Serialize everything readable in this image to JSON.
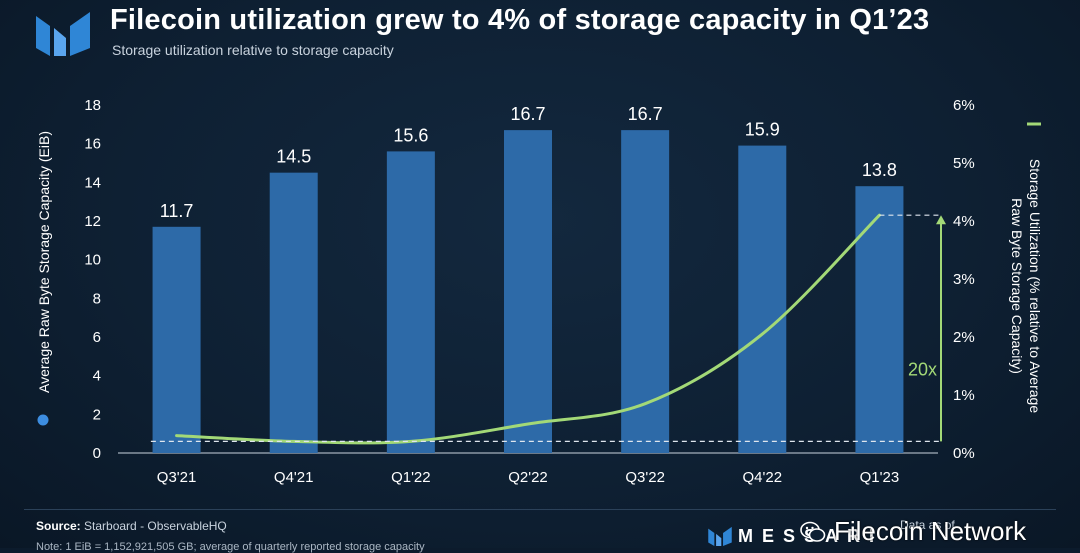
{
  "header": {
    "title": "Filecoin utilization grew to 4% of storage capacity in Q1’23",
    "subtitle": "Storage utilization relative to storage capacity"
  },
  "chart_data": {
    "type": "bar",
    "categories": [
      "Q3'21",
      "Q4'21",
      "Q1'22",
      "Q2'22",
      "Q3'22",
      "Q4'22",
      "Q1'23"
    ],
    "series": [
      {
        "name": "Average Raw Byte Storage Capacity (EiB)",
        "type": "bar",
        "axis": "left",
        "values": [
          11.7,
          14.5,
          15.6,
          16.7,
          16.7,
          15.9,
          13.8
        ],
        "data_labels": [
          "11.7",
          "14.5",
          "15.6",
          "16.7",
          "16.7",
          "15.9",
          "13.8"
        ],
        "color": "#2d6aa8"
      },
      {
        "name": "Storage Utilization (% relative to Average Raw Byte Storage Capacity)",
        "type": "line",
        "axis": "right",
        "values": [
          0.3,
          0.2,
          0.2,
          0.5,
          0.85,
          2.05,
          4.1
        ],
        "color": "#a3d977"
      }
    ],
    "left_axis": {
      "label": "Average Raw Byte Storage Capacity (EiB)",
      "ylim": [
        0,
        18
      ],
      "ticks": [
        0,
        2,
        4,
        6,
        8,
        10,
        12,
        14,
        16,
        18
      ],
      "tick_labels": [
        "0",
        "2",
        "4",
        "6",
        "8",
        "10",
        "12",
        "14",
        "16",
        "18"
      ]
    },
    "right_axis": {
      "label_line1": "Storage Utilization (% relative to Average",
      "label_line2": "Raw Byte Storage Capacity)",
      "ylim": [
        0,
        6
      ],
      "ticks": [
        0,
        1,
        2,
        3,
        4,
        5,
        6
      ],
      "tick_labels": [
        "0%",
        "1%",
        "2%",
        "3%",
        "4%",
        "5%",
        "6%"
      ]
    },
    "annotations": [
      {
        "text": "20x",
        "color": "#a3d977",
        "from_value": 0.2,
        "to_value": 4.1
      }
    ],
    "grid": false,
    "legend": [
      {
        "marker": "circle",
        "color": "#3d8de0",
        "position": "left-axis"
      },
      {
        "marker": "line",
        "color": "#a3d977",
        "position": "right-axis"
      }
    ]
  },
  "footer": {
    "source_label": "Source:",
    "source_text": "Starboard - ObservableHQ",
    "note": "Note: 1 EiB = 1,152,921,505 GB; average of quarterly reported storage capacity",
    "brand": "MESSARI",
    "data_as_of": "Data as of",
    "watermark": "Filecoin Network"
  }
}
